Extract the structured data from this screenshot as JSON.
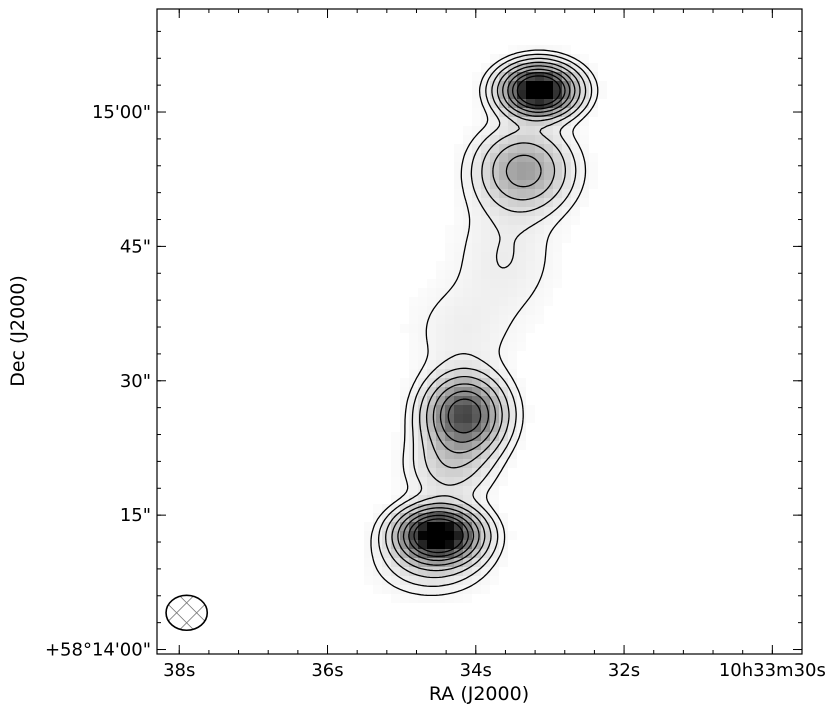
{
  "chart_data": {
    "type": "heatmap",
    "subtype": "radio-contour-image",
    "colormap": "greyscale",
    "xlabel": "RA (J2000)",
    "ylabel": "Dec (J2000)",
    "xlim_seconds": [
      38.3,
      29.6
    ],
    "ylim_arcsec": [
      -0.5,
      71.5
    ],
    "x_ticks": [
      {
        "value": 38,
        "label": "38s"
      },
      {
        "value": 36,
        "label": "36s"
      },
      {
        "value": 34,
        "label": "34s"
      },
      {
        "value": 32,
        "label": "32s"
      },
      {
        "value": 30,
        "label": "10h33m30s"
      }
    ],
    "y_ticks": [
      {
        "value": 0,
        "label": "+58°14'00\""
      },
      {
        "value": 15,
        "label": "15\""
      },
      {
        "value": 30,
        "label": "30\""
      },
      {
        "value": 45,
        "label": "45\""
      },
      {
        "value": 60,
        "label": "15'00\""
      }
    ],
    "beam": {
      "ra_sec": 37.9,
      "dec_arcsec": 4.1,
      "major_arcsec": 4.6,
      "minor_arcsec": 3.9,
      "hatched": true
    },
    "components": [
      {
        "ra_sec": 33.15,
        "dec_arcsec": 62.4,
        "peak": 1.0,
        "sigma_ra": 0.3,
        "sigma_dec": 1.7
      },
      {
        "ra_sec": 33.35,
        "dec_arcsec": 53.5,
        "peak": 0.32,
        "sigma_ra": 0.38,
        "sigma_dec": 2.8
      },
      {
        "ra_sec": 33.6,
        "dec_arcsec": 44.0,
        "peak": 0.06,
        "sigma_ra": 0.45,
        "sigma_dec": 4.5
      },
      {
        "ra_sec": 34.2,
        "dec_arcsec": 35.5,
        "peak": 0.05,
        "sigma_ra": 0.45,
        "sigma_dec": 3.5
      },
      {
        "ra_sec": 34.15,
        "dec_arcsec": 26.2,
        "peak": 0.62,
        "sigma_ra": 0.32,
        "sigma_dec": 2.6
      },
      {
        "ra_sec": 34.35,
        "dec_arcsec": 20.5,
        "peak": 0.14,
        "sigma_ra": 0.35,
        "sigma_dec": 2.5
      },
      {
        "ra_sec": 34.5,
        "dec_arcsec": 12.8,
        "peak": 1.0,
        "sigma_ra": 0.33,
        "sigma_dec": 1.8
      },
      {
        "ra_sec": 34.6,
        "dec_arcsec": 9.5,
        "peak": 0.1,
        "sigma_ra": 0.45,
        "sigma_dec": 2.2
      }
    ],
    "contour_levels": [
      0.03,
      0.06,
      0.11,
      0.18,
      0.27,
      0.38,
      0.5,
      0.63
    ],
    "grid": false,
    "legend": "none"
  }
}
